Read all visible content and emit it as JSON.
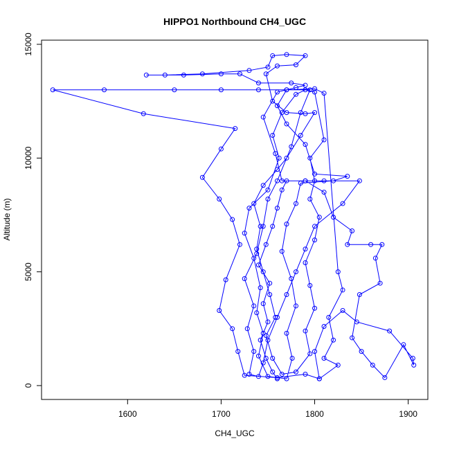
{
  "chart_data": {
    "type": "line",
    "title": "HIPPO1 Northbound CH4_UGC",
    "x_label": "CH4_UGC",
    "y_label": "Altitude (m)",
    "xlim": [
      1508,
      1921
    ],
    "ylim": [
      -610,
      15183
    ],
    "xticks": [
      1600,
      1700,
      1800,
      1900
    ],
    "yticks": [
      0,
      5000,
      10000,
      15000
    ],
    "markers": true,
    "x": [
      1760,
      1755,
      1748,
      1742,
      1750,
      1745,
      1752,
      1740,
      1748,
      1755,
      1760,
      1765,
      1770,
      1790,
      1810,
      1848,
      1830,
      1800,
      1790,
      1780,
      1770,
      1760,
      1750,
      1745,
      1740,
      1730,
      1735,
      1728,
      1735,
      1725,
      1738,
      1745,
      1750,
      1760,
      1775,
      1785,
      1795,
      1770,
      1740,
      1700,
      1650,
      1575,
      1520,
      1617,
      1715,
      1700,
      1680,
      1698,
      1712,
      1720,
      1705,
      1698,
      1712,
      1718,
      1725,
      1760,
      1790,
      1805,
      1800,
      1810,
      1830,
      1845,
      1880,
      1905,
      1906,
      1895,
      1875,
      1862,
      1850,
      1840,
      1848,
      1870,
      1865,
      1872,
      1860,
      1835,
      1840,
      1820,
      1810,
      1790,
      1765,
      1758,
      1745,
      1760,
      1780,
      1790,
      1775,
      1740,
      1720,
      1700,
      1660,
      1620,
      1640,
      1680,
      1730,
      1750,
      1755,
      1770,
      1790,
      1780,
      1760,
      1748,
      1755,
      1770,
      1790,
      1800,
      1785,
      1770,
      1760,
      1745,
      1735,
      1742,
      1738,
      1745,
      1752,
      1758,
      1748,
      1755,
      1765,
      1780,
      1795,
      1790,
      1800,
      1795,
      1790,
      1800,
      1805,
      1795,
      1800,
      1795,
      1810,
      1800,
      1790,
      1780,
      1765,
      1755,
      1762,
      1750,
      1730,
      1725,
      1735,
      1742,
      1738,
      1745,
      1740,
      1750,
      1770,
      1776,
      1770,
      1780,
      1775,
      1765,
      1770,
      1780,
      1785,
      1820,
      1835,
      1800,
      1790,
      1770,
      1760,
      1770,
      1800,
      1810,
      1825,
      1830,
      1815,
      1820,
      1810,
      1825,
      1805
    ],
    "series": [
      {
        "color": "#0000ff",
        "values": [
          300,
          600,
          1200,
          2000,
          2800,
          3600,
          4500,
          5300,
          6200,
          7000,
          7800,
          8600,
          9000,
          9000,
          9000,
          9000,
          8000,
          7000,
          6000,
          5000,
          4000,
          3000,
          2000,
          1000,
          400,
          500,
          1500,
          2500,
          3500,
          4700,
          5800,
          7000,
          8200,
          9000,
          10500,
          12000,
          13000,
          13000,
          13000,
          13000,
          13000,
          13000,
          13000,
          11950,
          11300,
          10400,
          9150,
          8200,
          7300,
          6200,
          4650,
          3300,
          2500,
          1500,
          450,
          350,
          500,
          300,
          1500,
          2600,
          3300,
          2800,
          2400,
          1200,
          900,
          1800,
          350,
          900,
          1500,
          2100,
          4000,
          4500,
          5600,
          6200,
          6200,
          6200,
          6800,
          7400,
          8500,
          9000,
          9000,
          10200,
          11800,
          12900,
          13100,
          13200,
          13300,
          13300,
          13700,
          13700,
          13650,
          13650,
          13650,
          13700,
          13850,
          14000,
          14500,
          14550,
          14500,
          14100,
          14050,
          13700,
          12500,
          12000,
          11950,
          12000,
          11000,
          10000,
          9500,
          8800,
          8000,
          7000,
          6000,
          5000,
          4000,
          3000,
          2200,
          1200,
          500,
          600,
          1400,
          2400,
          3400,
          4400,
          5400,
          6400,
          7400,
          8200,
          9000,
          10000,
          10800,
          12900,
          13000,
          12800,
          12000,
          11000,
          10000,
          8600,
          7800,
          6700,
          5600,
          4300,
          3200,
          2300,
          1300,
          400,
          300,
          1200,
          2300,
          3500,
          4700,
          5900,
          7100,
          8000,
          8900,
          9000,
          9200,
          9300,
          10600,
          11500,
          12300,
          13000,
          13050,
          12850,
          5000,
          4200,
          3000,
          2000,
          1200,
          900,
          300
        ]
      }
    ]
  }
}
